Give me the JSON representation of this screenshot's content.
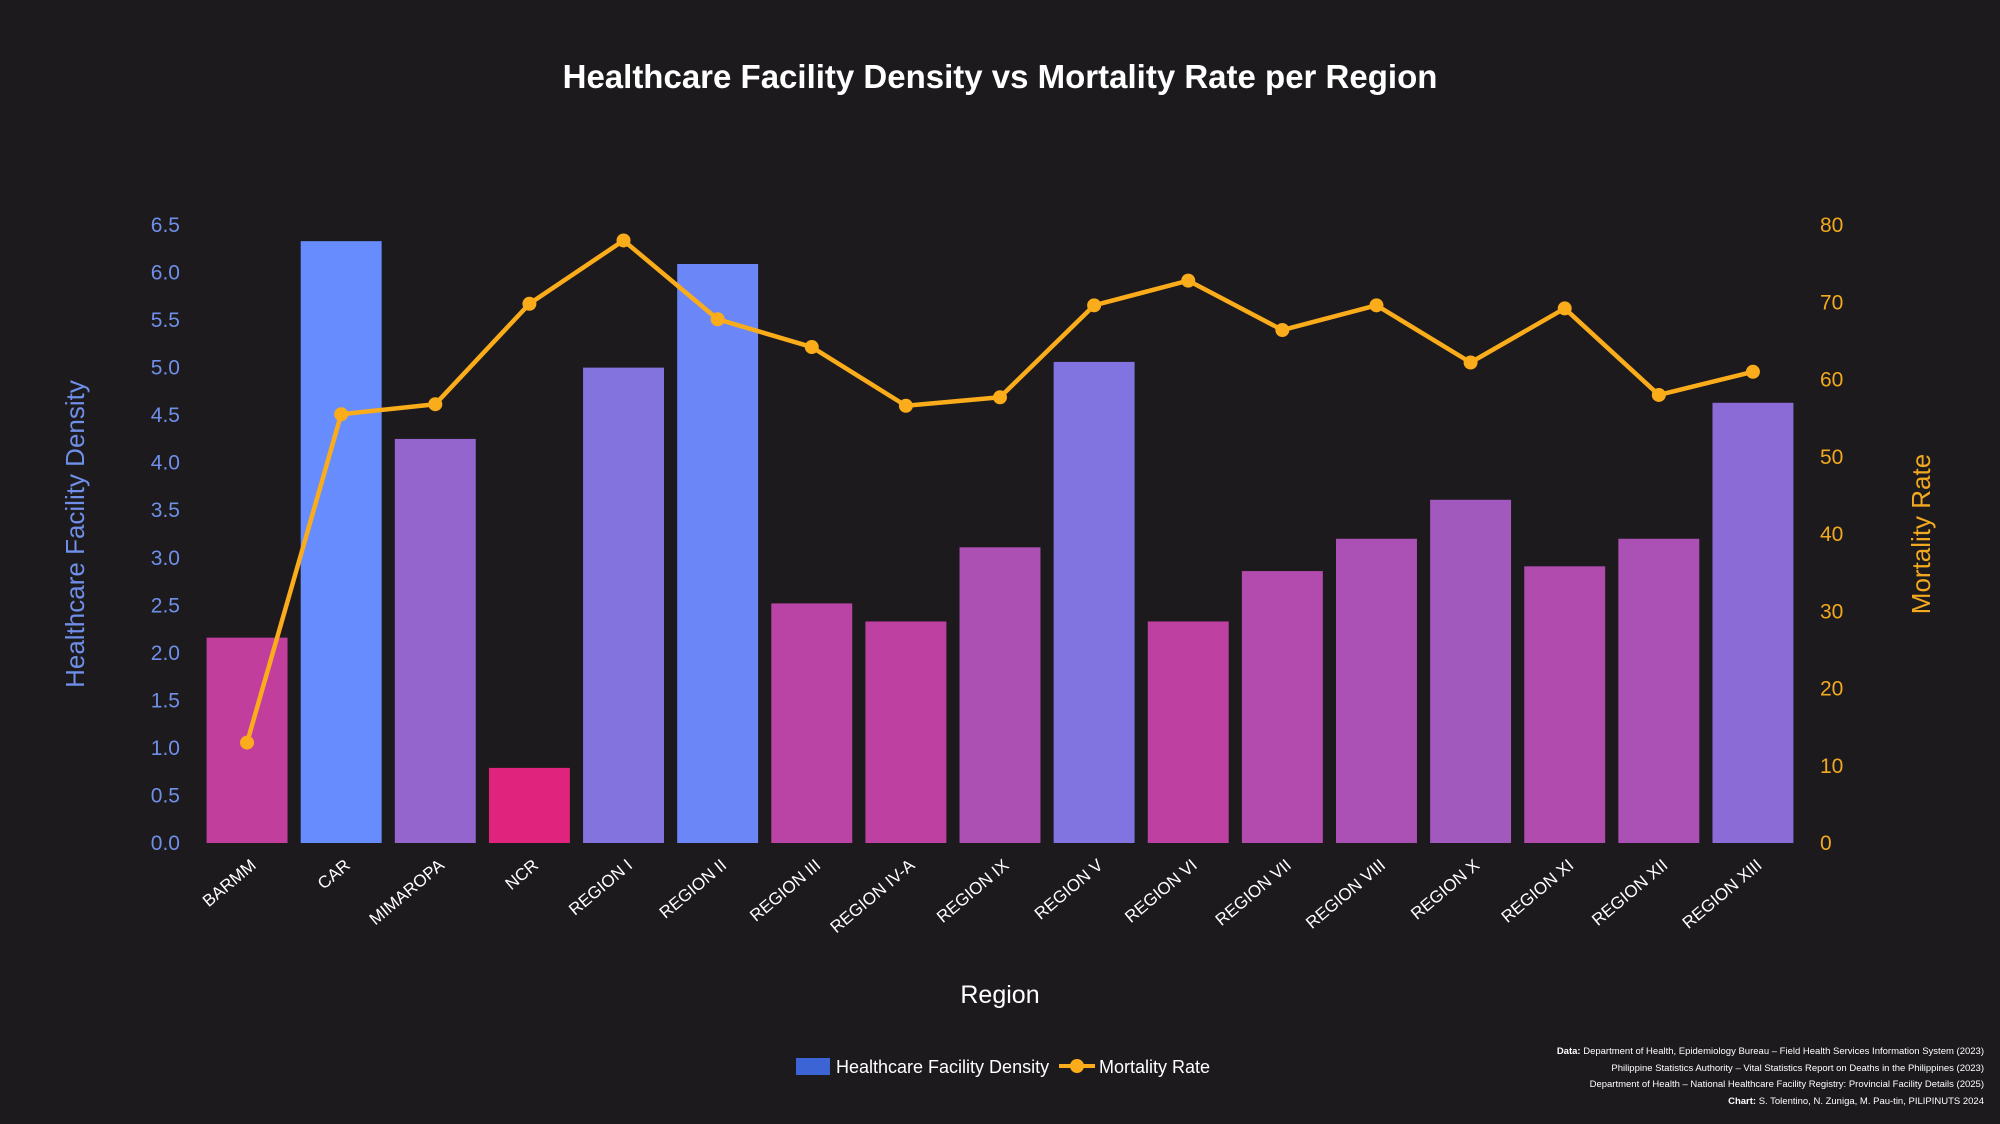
{
  "chart_data": {
    "type": "bar+line",
    "title": "Healthcare Facility Density vs Mortality Rate per Region",
    "xlabel": "Region",
    "ylabel_left": "Healthcare Facility Density",
    "ylabel_right": "Mortality Rate",
    "categories": [
      "BARMM",
      "CAR",
      "MIMAROPA",
      "NCR",
      "REGION I",
      "REGION II",
      "REGION III",
      "REGION IV-A",
      "REGION IX",
      "REGION V",
      "REGION VI",
      "REGION VII",
      "REGION VIII",
      "REGION X",
      "REGION XI",
      "REGION XII",
      "REGION XIII"
    ],
    "series": [
      {
        "name": "Healthcare Facility Density",
        "type": "bar",
        "axis": "left",
        "values": [
          2.16,
          6.33,
          4.25,
          0.79,
          5.0,
          6.09,
          2.52,
          2.33,
          3.11,
          5.06,
          2.33,
          2.86,
          3.2,
          3.61,
          2.91,
          3.2,
          4.63
        ]
      },
      {
        "name": "Mortality Rate",
        "type": "line",
        "axis": "right",
        "values": [
          13.0,
          55.5,
          56.8,
          69.8,
          78.0,
          67.8,
          64.2,
          56.6,
          57.7,
          69.6,
          72.8,
          66.4,
          69.6,
          62.2,
          69.2,
          58.0,
          61.0
        ]
      }
    ],
    "ylim_left": [
      0,
      6.5
    ],
    "yticks_left": [
      "0.0",
      "0.5",
      "1.0",
      "1.5",
      "2.0",
      "2.5",
      "3.0",
      "3.5",
      "4.0",
      "4.5",
      "5.0",
      "5.5",
      "6.0",
      "6.5"
    ],
    "ylim_right": [
      0,
      80
    ],
    "yticks_right": [
      "0",
      "10",
      "20",
      "30",
      "40",
      "50",
      "60",
      "70",
      "80"
    ],
    "legend_position": "bottom-center",
    "colors": {
      "background": "#1c1a1d",
      "bar_low": "#e0247d",
      "bar_high": "#668cfd",
      "legend_bar": "#3d64d4",
      "line": "#fbac1b",
      "left_axis": "#6f8fe8",
      "right_axis": "#f3a91f"
    }
  },
  "footnote": {
    "data_label": "Data:",
    "line1": "Department of Health, Epidemiology Bureau – Field Health Services Information System (2023)",
    "line2": "Philippine Statistics Authority – Vital Statistics Report on Deaths in the Philippines (2023)",
    "line3": "Department of Health – National Healthcare Facility Registry: Provincial Facility Details (2025)",
    "chart_label": "Chart:",
    "credits": "S. Tolentino, N. Zuniga, M. Pau-tin, PILIPINUTS 2024"
  }
}
